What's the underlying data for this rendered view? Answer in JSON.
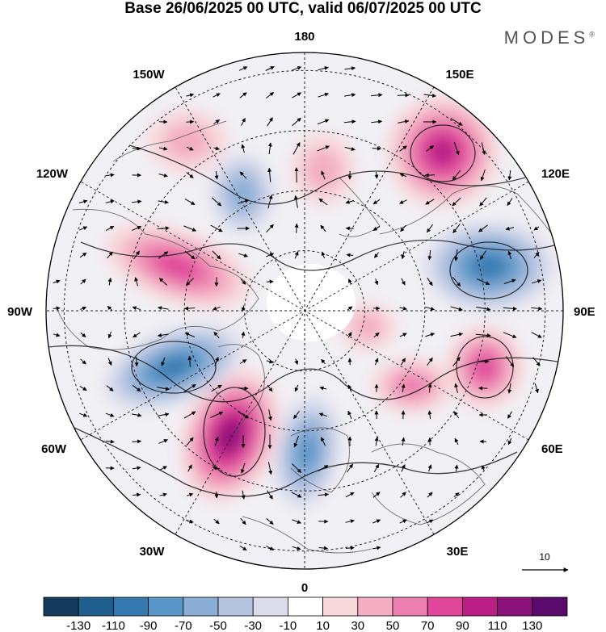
{
  "title": "Base 26/06/2025 00 UTC, valid 06/07/2025 00 UTC",
  "brand": {
    "name": "MODES",
    "mark": "®"
  },
  "longitude_labels": [
    {
      "id": "lon-180",
      "text": "180"
    },
    {
      "id": "lon-150e",
      "text": "150E"
    },
    {
      "id": "lon-120e",
      "text": "120E"
    },
    {
      "id": "lon-90e",
      "text": "90E"
    },
    {
      "id": "lon-60e",
      "text": "60E"
    },
    {
      "id": "lon-30e",
      "text": "30E"
    },
    {
      "id": "lon-0",
      "text": "0"
    },
    {
      "id": "lon-30w",
      "text": "30W"
    },
    {
      "id": "lon-60w",
      "text": "60W"
    },
    {
      "id": "lon-90w",
      "text": "90W"
    },
    {
      "id": "lon-120w",
      "text": "120W"
    },
    {
      "id": "lon-150w",
      "text": "150W"
    }
  ],
  "reference_vector": {
    "label": "10"
  },
  "colorbar": {
    "ticks": [
      "-130",
      "-110",
      "-90",
      "-70",
      "-50",
      "-30",
      "-10",
      "10",
      "30",
      "50",
      "70",
      "90",
      "110",
      "130"
    ],
    "colors": [
      "#143a5c",
      "#1e5f8e",
      "#3479b0",
      "#5a97c8",
      "#8aaed6",
      "#b3c3e0",
      "#dadcec",
      "#ffffff",
      "#f8d8dc",
      "#f3aec3",
      "#ec7fae",
      "#e0479b",
      "#bb1d86",
      "#8c1179",
      "#5a0a6a"
    ]
  },
  "anomalies": [
    {
      "id": "pos-ne-pacific",
      "sign": "positive",
      "level": 90
    },
    {
      "id": "neg-east-asia",
      "sign": "negative",
      "level": -90
    },
    {
      "id": "pos-central-asia",
      "sign": "positive",
      "level": 70
    },
    {
      "id": "pos-west-siberia",
      "sign": "positive",
      "level": 50
    },
    {
      "id": "neg-scandinavia",
      "sign": "negative",
      "level": -70
    },
    {
      "id": "pos-north-atlantic",
      "sign": "positive",
      "level": 110
    },
    {
      "id": "neg-labrador",
      "sign": "negative",
      "level": -90
    },
    {
      "id": "pos-canada",
      "sign": "positive",
      "level": 70
    },
    {
      "id": "neg-alaska",
      "sign": "negative",
      "level": -50
    },
    {
      "id": "pos-bering",
      "sign": "positive",
      "level": 30
    },
    {
      "id": "pos-gulf-alaska",
      "sign": "positive",
      "level": 30
    },
    {
      "id": "pos-arctic-siberia",
      "sign": "positive",
      "level": 30
    }
  ]
}
